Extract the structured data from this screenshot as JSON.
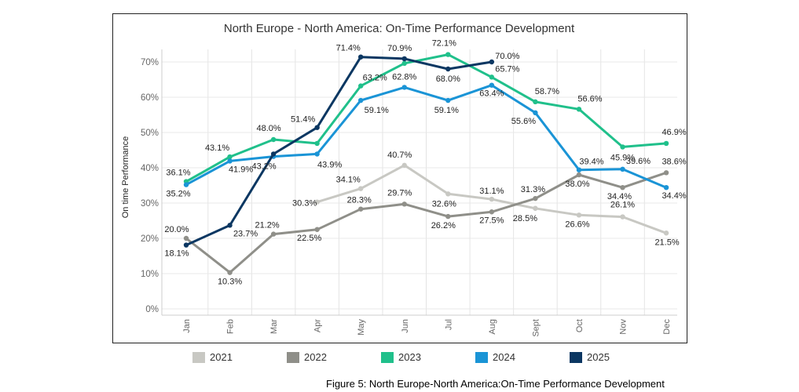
{
  "chart_data": {
    "type": "line",
    "title": "North Europe - North America: On-Time Performance Development",
    "xlabel": "",
    "ylabel": "On time Performance",
    "ylim": [
      0,
      75
    ],
    "grid": true,
    "categories": [
      "Jan",
      "Feb",
      "Mar",
      "Apr",
      "May",
      "Jun",
      "Jul",
      "Aug",
      "Sept",
      "Oct",
      "Nov",
      "Dec"
    ],
    "yticks": [
      "0%",
      "10%",
      "20%",
      "30%",
      "40%",
      "50%",
      "60%",
      "70%"
    ],
    "series": [
      {
        "name": "2021",
        "color": "#c8c8c3",
        "values": [
          null,
          null,
          null,
          30.3,
          34.1,
          40.7,
          32.6,
          31.1,
          28.5,
          26.6,
          26.1,
          21.5
        ],
        "labels": [
          "",
          "",
          "",
          "30.3%",
          "34.1%",
          "40.7%",
          "32.6%",
          "31.1%",
          "28.5%",
          "26.6%",
          "26.1%",
          "21.5%"
        ]
      },
      {
        "name": "2022",
        "color": "#8f8f89",
        "values": [
          20.0,
          10.3,
          21.2,
          22.5,
          28.3,
          29.7,
          26.2,
          27.5,
          31.3,
          38.0,
          34.4,
          38.6
        ],
        "labels": [
          "20.0%",
          "10.3%",
          "21.2%",
          "22.5%",
          "28.3%",
          "29.7%",
          "26.2%",
          "27.5%",
          "31.3%",
          "38.0%",
          "34.4%",
          "38.6%"
        ]
      },
      {
        "name": "2023",
        "color": "#20c08b",
        "values": [
          36.1,
          43.1,
          48.0,
          46.9,
          63.2,
          69.6,
          72.1,
          65.7,
          58.7,
          56.6,
          45.9,
          46.9
        ],
        "labels": [
          "36.1%",
          "43.1%",
          "48.0%",
          "",
          "63.2%",
          "",
          "72.1%",
          "65.7%",
          "58.7%",
          "56.6%",
          "45.9%",
          "46.9%"
        ]
      },
      {
        "name": "2024",
        "color": "#1a94d6",
        "values": [
          35.2,
          41.9,
          43.2,
          43.9,
          59.1,
          62.8,
          59.1,
          63.4,
          55.6,
          39.4,
          39.6,
          34.4
        ],
        "labels": [
          "35.2%",
          "41.9%",
          "43.2%",
          "43.9%",
          "59.1%",
          "62.8%",
          "59.1%",
          "63.4%",
          "55.6%",
          "39.4%",
          "39.6%",
          "34.4%"
        ]
      },
      {
        "name": "2025",
        "color": "#0b3762",
        "values": [
          18.1,
          23.7,
          43.9,
          51.4,
          71.4,
          70.9,
          68.0,
          70.0,
          null,
          null,
          null,
          null
        ],
        "labels": [
          "18.1%",
          "23.7%",
          "",
          "51.4%",
          "71.4%",
          "70.9%",
          "68.0%",
          "70.0%",
          "",
          "",
          "",
          ""
        ]
      }
    ]
  },
  "caption": "Figure 5: North Europe-North America:On-Time Performance Development"
}
